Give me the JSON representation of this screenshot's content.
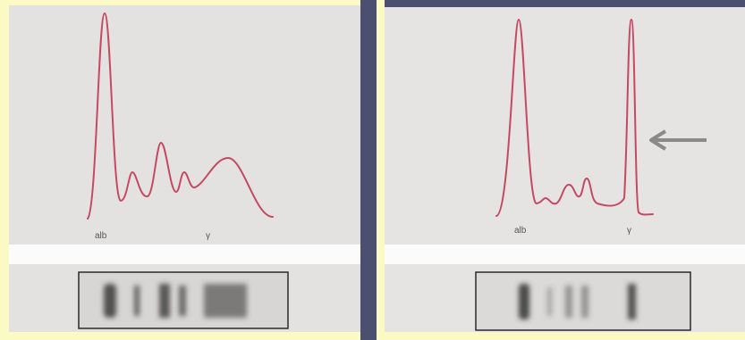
{
  "panels": [
    {
      "albumin_label": "alb",
      "gamma_label": "γ"
    },
    {
      "albumin_label": "alb",
      "gamma_label": "γ"
    }
  ]
}
